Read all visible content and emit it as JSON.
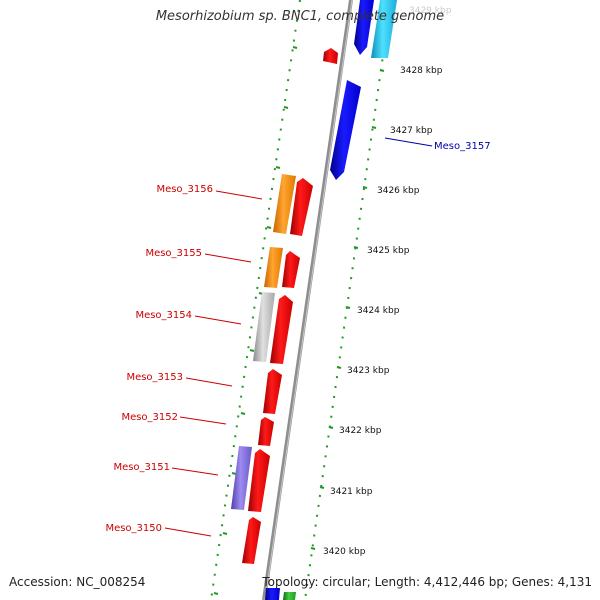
{
  "title": "Mesorhizobium sp. BNC1, complete genome",
  "footer": {
    "accession": "Accession: NC_008254",
    "stats": "Topology: circular; Length: 4,412,446 bp; Genes: 4,131"
  },
  "ruler": [
    {
      "label": "3429 kbp",
      "faded": true
    },
    {
      "label": "3428 kbp"
    },
    {
      "label": "3427 kbp"
    },
    {
      "label": "3426 kbp"
    },
    {
      "label": "3425 kbp"
    },
    {
      "label": "3424 kbp"
    },
    {
      "label": "3423 kbp"
    },
    {
      "label": "3422 kbp"
    },
    {
      "label": "3421 kbp"
    },
    {
      "label": "3420 kbp"
    }
  ],
  "gene_labels": [
    {
      "text": "Meso_3157",
      "color": "#0000aa"
    },
    {
      "text": "Meso_3156",
      "color": "#cc0000"
    },
    {
      "text": "Meso_3155",
      "color": "#cc0000"
    },
    {
      "text": "Meso_3154",
      "color": "#cc0000"
    },
    {
      "text": "Meso_3153",
      "color": "#cc0000"
    },
    {
      "text": "Meso_3152",
      "color": "#cc0000"
    },
    {
      "text": "Meso_3151",
      "color": "#cc0000"
    },
    {
      "text": "Meso_3150",
      "color": "#cc0000"
    }
  ],
  "colors": {
    "forward_strand": "#ee0000",
    "reverse_strand": "#0000ee",
    "light_blue": "#22c8f0",
    "orange": "#ff8c00",
    "grey": "#bbbbbb",
    "purple": "#7b68d0",
    "green": "#229922",
    "backbone": "#888888",
    "ruler_dots": "#229922"
  }
}
